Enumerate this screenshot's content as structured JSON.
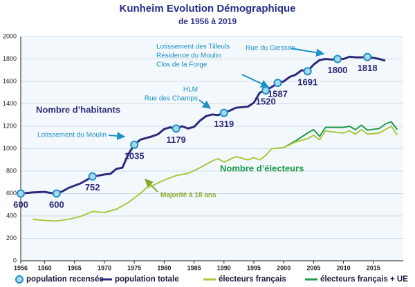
{
  "chart_data": {
    "type": "line",
    "title": "Kunheim Evolution Démographique",
    "subtitle": "de 1956 à 2019",
    "xlim": [
      1956,
      2020
    ],
    "xticks": [
      1956,
      1960,
      1965,
      1970,
      1975,
      1980,
      1985,
      1990,
      1995,
      2000,
      2005,
      2010,
      2015
    ],
    "ylim": [
      0,
      2000
    ],
    "yticks": [
      0,
      200,
      400,
      600,
      800,
      1000,
      1200,
      1400,
      1600,
      1800,
      2000
    ],
    "grid": true,
    "legend": "bottom",
    "annotations": [
      "Nombre d’habitants",
      "Nombre d’électeurs",
      "Lotissement du Moulin",
      "Majorité à 18 ans",
      [
        "HLM",
        "Rue des Champs"
      ],
      [
        "Lotissement des Tilleuls",
        "Résidence du Moulin",
        "Clos de la Forge"
      ],
      "Rue du Giessen"
    ],
    "series": [
      {
        "name": "population recensée",
        "mode": "markers",
        "color": "#1e90c8",
        "x": [
          1956,
          1962,
          1968,
          1975,
          1982,
          1990,
          1997,
          1999,
          2004,
          2009,
          2014
        ],
        "values": [
          600,
          600,
          752,
          1035,
          1179,
          1319,
          1520,
          1587,
          1691,
          1800,
          1818
        ]
      },
      {
        "name": "population totale",
        "mode": "line",
        "color": "#2e2a7a",
        "x": [
          1956,
          1958,
          1960,
          1961,
          1962,
          1963,
          1964,
          1965,
          1966,
          1967,
          1968,
          1969,
          1970,
          1971,
          1972,
          1973,
          1974,
          1975,
          1976,
          1977,
          1978,
          1979,
          1980,
          1981,
          1982,
          1983,
          1984,
          1985,
          1986,
          1987,
          1988,
          1989,
          1990,
          1991,
          1992,
          1993,
          1994,
          1995,
          1996,
          1997,
          1998,
          1999,
          2000,
          2001,
          2002,
          2003,
          2004,
          2005,
          2006,
          2007,
          2008,
          2009,
          2010,
          2011,
          2012,
          2013,
          2014,
          2015,
          2016,
          2017
        ],
        "values": [
          600,
          610,
          615,
          605,
          600,
          620,
          650,
          670,
          690,
          720,
          752,
          760,
          770,
          775,
          820,
          830,
          950,
          1035,
          1080,
          1095,
          1110,
          1130,
          1175,
          1190,
          1179,
          1200,
          1180,
          1195,
          1250,
          1290,
          1305,
          1300,
          1319,
          1340,
          1365,
          1370,
          1375,
          1410,
          1500,
          1520,
          1550,
          1587,
          1600,
          1640,
          1660,
          1700,
          1691,
          1750,
          1790,
          1800,
          1795,
          1800,
          1800,
          1820,
          1815,
          1815,
          1818,
          1810,
          1800,
          1785
        ]
      },
      {
        "name": "électeurs français",
        "mode": "line",
        "color": "#a8c83c",
        "x": [
          1958,
          1960,
          1962,
          1964,
          1966,
          1968,
          1970,
          1972,
          1974,
          1976,
          1977,
          1978,
          1980,
          1982,
          1984,
          1986,
          1988,
          1989,
          1990,
          1992,
          1994,
          1995,
          1996,
          1997,
          1998,
          2000,
          2002,
          2004,
          2005,
          2006,
          2007,
          2008,
          2010,
          2011,
          2012,
          2013,
          2014,
          2016,
          2018,
          2019
        ],
        "values": [
          370,
          360,
          355,
          370,
          395,
          440,
          430,
          460,
          520,
          600,
          650,
          670,
          720,
          760,
          780,
          830,
          890,
          910,
          880,
          930,
          900,
          920,
          900,
          940,
          1000,
          1010,
          1060,
          1090,
          1120,
          1080,
          1160,
          1150,
          1140,
          1160,
          1130,
          1170,
          1130,
          1140,
          1200,
          1120
        ]
      },
      {
        "name": "électeurs français + UE",
        "mode": "line",
        "color": "#1e9a4a",
        "x": [
          2000,
          2002,
          2004,
          2005,
          2006,
          2007,
          2008,
          2010,
          2011,
          2012,
          2013,
          2014,
          2016,
          2017,
          2018,
          2019
        ],
        "values": [
          1010,
          1070,
          1140,
          1170,
          1110,
          1190,
          1190,
          1190,
          1200,
          1170,
          1210,
          1165,
          1180,
          1220,
          1240,
          1170
        ]
      }
    ]
  }
}
